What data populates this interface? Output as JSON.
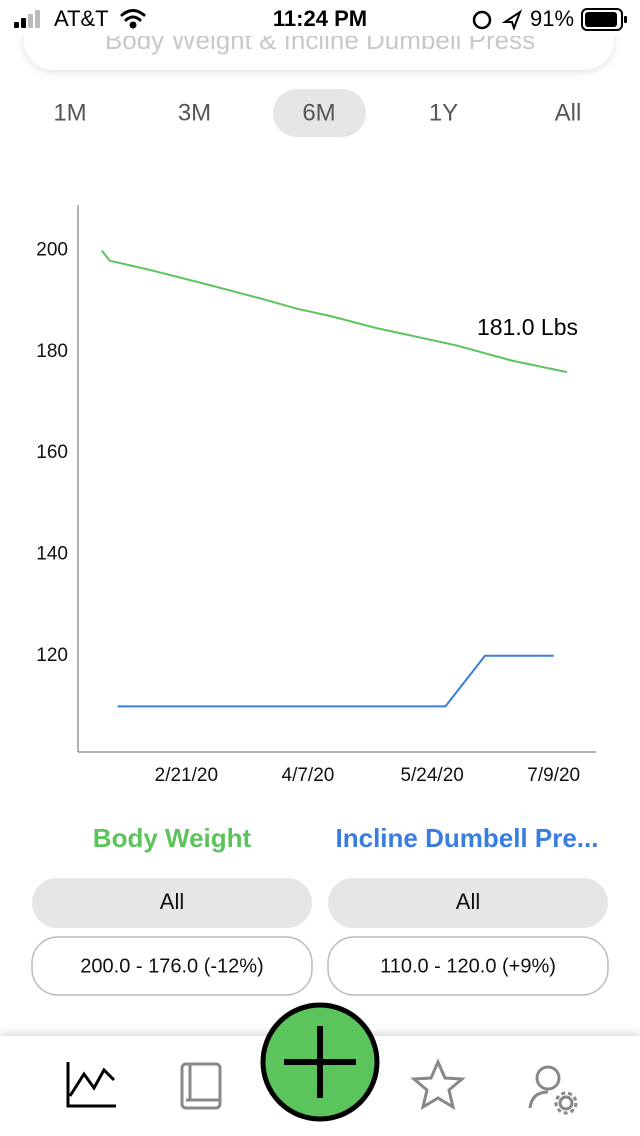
{
  "status_bar": {
    "carrier": "AT&T",
    "time": "11:24 PM",
    "battery": "91%"
  },
  "header": {
    "title": "Body Weight & Incline Dumbell Press"
  },
  "ranges": {
    "options": [
      "1M",
      "3M",
      "6M",
      "1Y",
      "All"
    ],
    "selected": 2
  },
  "chart_data": {
    "type": "line",
    "xlim": [
      "1/11/20",
      "7/25/20"
    ],
    "xticks": [
      "2/21/20",
      "4/7/20",
      "5/24/20",
      "7/9/20"
    ],
    "ylim": [
      101,
      209
    ],
    "yticks": [
      120,
      140,
      160,
      180,
      200
    ],
    "grid": false,
    "annotation": "181.0 Lbs",
    "series": [
      {
        "name": "Body Weight",
        "color": "#5cc45c",
        "x": [
          "1/20/20",
          "1/23/20",
          "2/7/20",
          "2/26/20",
          "3/19/20",
          "4/3/20",
          "4/16/20",
          "5/3/20",
          "6/2/20",
          "6/23/20",
          "7/14/20"
        ],
        "values": [
          200,
          198,
          196.2,
          193.7,
          190.7,
          188.5,
          187,
          184.7,
          181.3,
          178.3,
          176
        ]
      },
      {
        "name": "Incline Dumbell Pre...",
        "color": "#3a7de0",
        "x": [
          "1/26/20",
          "5/29/20",
          "6/13/20",
          "7/9/20"
        ],
        "values": [
          110,
          110,
          120,
          120
        ]
      }
    ]
  },
  "filters": [
    {
      "button": "All",
      "summary": "200.0 - 176.0 (-12%)"
    },
    {
      "button": "All",
      "summary": "110.0 - 120.0 (+9%)"
    }
  ]
}
